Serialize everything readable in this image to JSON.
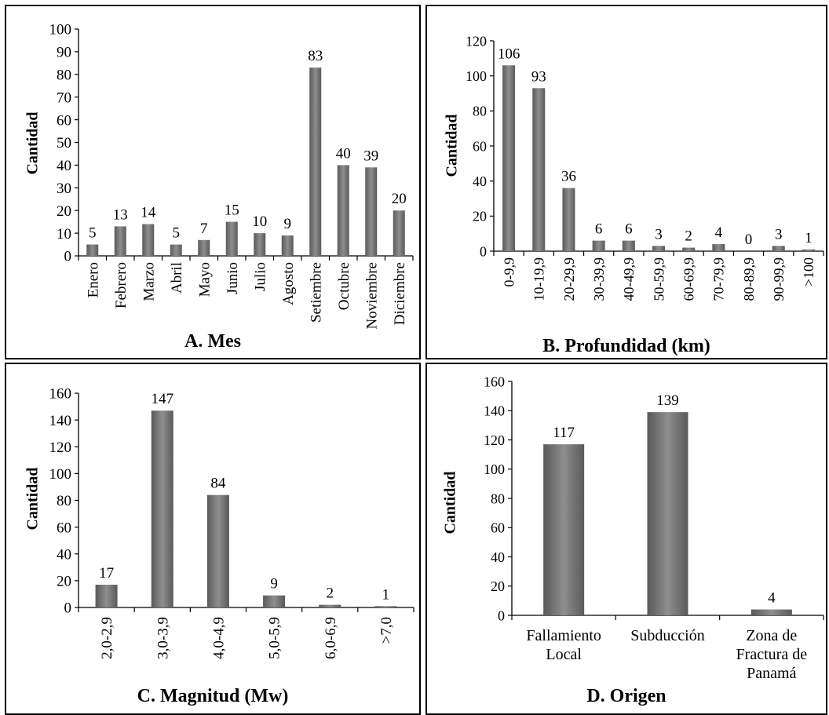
{
  "chart_data": [
    {
      "id": "mes",
      "type": "bar",
      "title": "A. Mes",
      "ylabel": "Cantidad",
      "ylim": [
        0,
        100
      ],
      "yticks": [
        0,
        10,
        20,
        30,
        40,
        50,
        60,
        70,
        80,
        90,
        100
      ],
      "categories": [
        "Enero",
        "Febrero",
        "Marzo",
        "Abril",
        "Mayo",
        "Junio",
        "Julio",
        "Agosto",
        "Setiembre",
        "Octubre",
        "Noviembre",
        "Diciembre"
      ],
      "values": [
        5,
        13,
        14,
        5,
        7,
        15,
        10,
        9,
        83,
        40,
        39,
        20
      ],
      "rotate_labels": true,
      "grid": false
    },
    {
      "id": "profundidad",
      "type": "bar",
      "title": "B. Profundidad (km)",
      "ylabel": "Cantidad",
      "ylim": [
        0,
        120
      ],
      "yticks": [
        0,
        20,
        40,
        60,
        80,
        100,
        120
      ],
      "categories": [
        "0-9,9",
        "10-19,9",
        "20-29,9",
        "30-39,9",
        "40-49,9",
        "50-59,9",
        "60-69,9",
        "70-79,9",
        "80-89,9",
        "90-99,9",
        ">100"
      ],
      "values": [
        106,
        93,
        36,
        6,
        6,
        3,
        2,
        4,
        0,
        3,
        1
      ],
      "rotate_labels": true,
      "grid": false
    },
    {
      "id": "magnitud",
      "type": "bar",
      "title": "C. Magnitud (Mw)",
      "ylabel": "Cantidad",
      "ylim": [
        0,
        160
      ],
      "yticks": [
        0,
        20,
        40,
        60,
        80,
        100,
        120,
        140,
        160
      ],
      "categories": [
        "2,0-2,9",
        "3,0-3,9",
        "4,0-4,9",
        "5,0-5,9",
        "6,0-6,9",
        ">7,0"
      ],
      "values": [
        17,
        147,
        84,
        9,
        2,
        1
      ],
      "rotate_labels": true,
      "grid": false
    },
    {
      "id": "origen",
      "type": "bar",
      "title": "D. Origen",
      "ylabel": "Cantidad",
      "ylim": [
        0,
        160
      ],
      "yticks": [
        0,
        20,
        40,
        60,
        80,
        100,
        120,
        140,
        160
      ],
      "categories": [
        [
          "Fallamiento",
          "Local"
        ],
        [
          "Subducción"
        ],
        [
          "Zona de",
          "Fractura de",
          "Panamá"
        ]
      ],
      "values": [
        117,
        139,
        4
      ],
      "rotate_labels": false,
      "grid": false
    }
  ]
}
